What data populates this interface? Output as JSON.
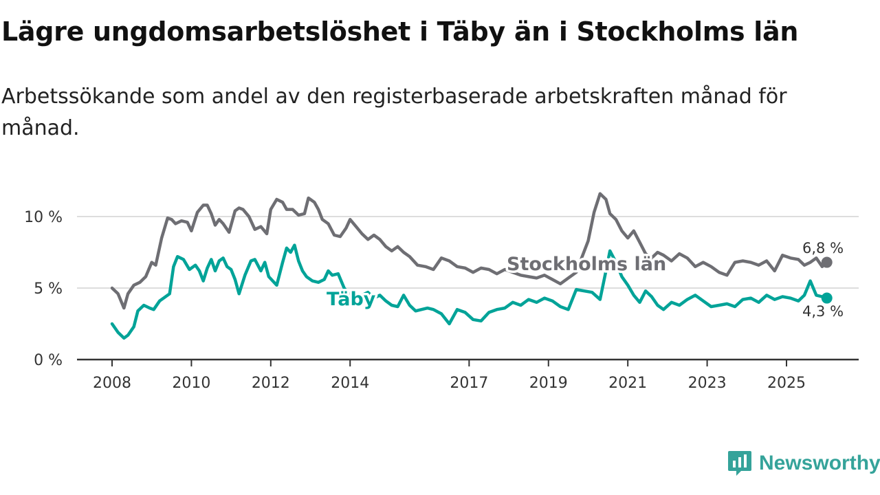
{
  "title": "Lägre ungdomsarbetslöshet i Täby än i Stockholms län",
  "subtitle": "Arbetssökande som andel av den registerbaserade arbetskraften månad för månad.",
  "brand": "Newsworthy",
  "colors": {
    "stockholm": "#6e6e73",
    "taby": "#00a398",
    "axis": "#333333",
    "grid": "#dddddd",
    "brand": "#35a39a"
  },
  "chart_data": {
    "type": "line",
    "title": "Lägre ungdomsarbetslöshet i Täby än i Stockholms län",
    "subtitle": "Arbetssökande som andel av den registerbaserade arbetskraften månad för månad.",
    "x_unit": "year",
    "xlim": [
      2007.5,
      2026.8
    ],
    "ylim": [
      0,
      12
    ],
    "y_ticks": [
      0,
      5,
      10
    ],
    "y_tick_labels": [
      "0 %",
      "5 %",
      "10 %"
    ],
    "x_ticks": [
      2008,
      2010,
      2012,
      2014,
      2017,
      2019,
      2021,
      2023,
      2025
    ],
    "x_tick_labels": [
      "2008",
      "2010",
      "2012",
      "2014",
      "2017",
      "2019",
      "2021",
      "2023",
      "2025"
    ],
    "grid": true,
    "series": [
      {
        "name": "Stockholms län",
        "label": "Stockholms län",
        "color": "#6e6e73",
        "end_label": "6,8 %",
        "x": [
          2008.0,
          2008.15,
          2008.3,
          2008.4,
          2008.55,
          2008.7,
          2008.85,
          2009.0,
          2009.1,
          2009.25,
          2009.4,
          2009.5,
          2009.6,
          2009.75,
          2009.9,
          2010.0,
          2010.15,
          2010.3,
          2010.4,
          2010.5,
          2010.6,
          2010.7,
          2010.8,
          2010.95,
          2011.1,
          2011.2,
          2011.3,
          2011.45,
          2011.6,
          2011.75,
          2011.9,
          2012.0,
          2012.15,
          2012.3,
          2012.4,
          2012.55,
          2012.7,
          2012.85,
          2012.95,
          2013.1,
          2013.2,
          2013.3,
          2013.45,
          2013.6,
          2013.75,
          2013.9,
          2014.0,
          2014.15,
          2014.3,
          2014.45,
          2014.6,
          2014.75,
          2014.9,
          2015.05,
          2015.2,
          2015.35,
          2015.5,
          2015.7,
          2015.9,
          2016.1,
          2016.3,
          2016.5,
          2016.7,
          2016.9,
          2017.1,
          2017.3,
          2017.5,
          2017.7,
          2017.9,
          2018.1,
          2018.3,
          2018.5,
          2018.7,
          2018.9,
          2019.1,
          2019.3,
          2019.5,
          2019.7,
          2019.85,
          2020.0,
          2020.15,
          2020.3,
          2020.45,
          2020.55,
          2020.7,
          2020.85,
          2021.0,
          2021.15,
          2021.3,
          2021.45,
          2021.6,
          2021.75,
          2021.9,
          2022.1,
          2022.3,
          2022.5,
          2022.7,
          2022.9,
          2023.1,
          2023.3,
          2023.5,
          2023.7,
          2023.9,
          2024.1,
          2024.3,
          2024.5,
          2024.7,
          2024.9,
          2025.1,
          2025.3,
          2025.45,
          2025.6,
          2025.75,
          2025.9,
          2026.0
        ],
        "y": [
          5.0,
          4.6,
          3.6,
          4.6,
          5.2,
          5.4,
          5.8,
          6.8,
          6.6,
          8.5,
          9.9,
          9.8,
          9.5,
          9.7,
          9.6,
          9.0,
          10.3,
          10.8,
          10.8,
          10.2,
          9.4,
          9.8,
          9.5,
          8.9,
          10.4,
          10.6,
          10.5,
          10.0,
          9.1,
          9.3,
          8.8,
          10.5,
          11.2,
          11.0,
          10.5,
          10.5,
          10.1,
          10.2,
          11.3,
          11.0,
          10.5,
          9.8,
          9.5,
          8.7,
          8.6,
          9.2,
          9.8,
          9.3,
          8.8,
          8.4,
          8.7,
          8.4,
          7.9,
          7.6,
          7.9,
          7.5,
          7.2,
          6.6,
          6.5,
          6.3,
          7.1,
          6.9,
          6.5,
          6.4,
          6.1,
          6.4,
          6.3,
          6.0,
          6.3,
          6.1,
          5.9,
          5.8,
          5.7,
          5.9,
          5.6,
          5.3,
          5.7,
          6.1,
          7.2,
          8.3,
          10.3,
          11.6,
          11.2,
          10.2,
          9.8,
          9.0,
          8.5,
          9.0,
          8.2,
          7.4,
          7.1,
          7.5,
          7.3,
          6.9,
          7.4,
          7.1,
          6.5,
          6.8,
          6.5,
          6.1,
          5.9,
          6.8,
          6.9,
          6.8,
          6.6,
          6.9,
          6.2,
          7.3,
          7.1,
          7.0,
          6.6,
          6.8,
          7.1,
          6.5,
          6.8
        ]
      },
      {
        "name": "Täby",
        "label": "Täby",
        "color": "#00a398",
        "end_label": "4,3 %",
        "x": [
          2008.0,
          2008.15,
          2008.3,
          2008.4,
          2008.55,
          2008.65,
          2008.8,
          2008.95,
          2009.05,
          2009.2,
          2009.3,
          2009.45,
          2009.55,
          2009.65,
          2009.8,
          2009.95,
          2010.1,
          2010.2,
          2010.3,
          2010.4,
          2010.5,
          2010.6,
          2010.7,
          2010.8,
          2010.9,
          2011.0,
          2011.1,
          2011.2,
          2011.35,
          2011.5,
          2011.6,
          2011.75,
          2011.85,
          2011.95,
          2012.05,
          2012.15,
          2012.3,
          2012.4,
          2012.5,
          2012.6,
          2012.7,
          2012.8,
          2012.9,
          2013.05,
          2013.2,
          2013.35,
          2013.45,
          2013.55,
          2013.7,
          2013.85,
          2014.0,
          2014.15,
          2014.3,
          2014.45,
          2014.6,
          2014.75,
          2014.9,
          2015.05,
          2015.2,
          2015.35,
          2015.5,
          2015.65,
          2015.8,
          2015.95,
          2016.1,
          2016.3,
          2016.5,
          2016.7,
          2016.9,
          2017.1,
          2017.3,
          2017.5,
          2017.7,
          2017.9,
          2018.1,
          2018.3,
          2018.5,
          2018.7,
          2018.9,
          2019.1,
          2019.3,
          2019.5,
          2019.7,
          2019.9,
          2020.1,
          2020.3,
          2020.45,
          2020.55,
          2020.7,
          2020.85,
          2021.0,
          2021.15,
          2021.3,
          2021.45,
          2021.6,
          2021.75,
          2021.9,
          2022.1,
          2022.3,
          2022.5,
          2022.7,
          2022.9,
          2023.1,
          2023.3,
          2023.5,
          2023.7,
          2023.9,
          2024.1,
          2024.3,
          2024.5,
          2024.7,
          2024.9,
          2025.1,
          2025.3,
          2025.45,
          2025.6,
          2025.75,
          2025.9,
          2026.0
        ],
        "y": [
          2.5,
          1.9,
          1.5,
          1.7,
          2.3,
          3.4,
          3.8,
          3.6,
          3.5,
          4.1,
          4.3,
          4.6,
          6.5,
          7.2,
          7.0,
          6.3,
          6.6,
          6.2,
          5.5,
          6.4,
          7.0,
          6.2,
          6.9,
          7.1,
          6.5,
          6.3,
          5.6,
          4.6,
          5.9,
          6.9,
          7.0,
          6.2,
          6.8,
          5.8,
          5.5,
          5.2,
          6.8,
          7.8,
          7.5,
          8.0,
          6.9,
          6.2,
          5.8,
          5.5,
          5.4,
          5.6,
          6.2,
          5.9,
          6.0,
          5.0,
          4.5,
          4.3,
          4.5,
          4.7,
          4.3,
          4.5,
          4.1,
          3.8,
          3.7,
          4.5,
          3.8,
          3.4,
          3.5,
          3.6,
          3.5,
          3.2,
          2.5,
          3.5,
          3.3,
          2.8,
          2.7,
          3.3,
          3.5,
          3.6,
          4.0,
          3.8,
          4.2,
          4.0,
          4.3,
          4.1,
          3.7,
          3.5,
          4.9,
          4.8,
          4.7,
          4.2,
          6.2,
          7.6,
          6.8,
          5.8,
          5.2,
          4.5,
          4.0,
          4.8,
          4.4,
          3.8,
          3.5,
          4.0,
          3.8,
          4.2,
          4.5,
          4.1,
          3.7,
          3.8,
          3.9,
          3.7,
          4.2,
          4.3,
          4.0,
          4.5,
          4.2,
          4.4,
          4.3,
          4.1,
          4.5,
          5.5,
          4.5,
          4.4,
          4.3
        ]
      }
    ]
  }
}
